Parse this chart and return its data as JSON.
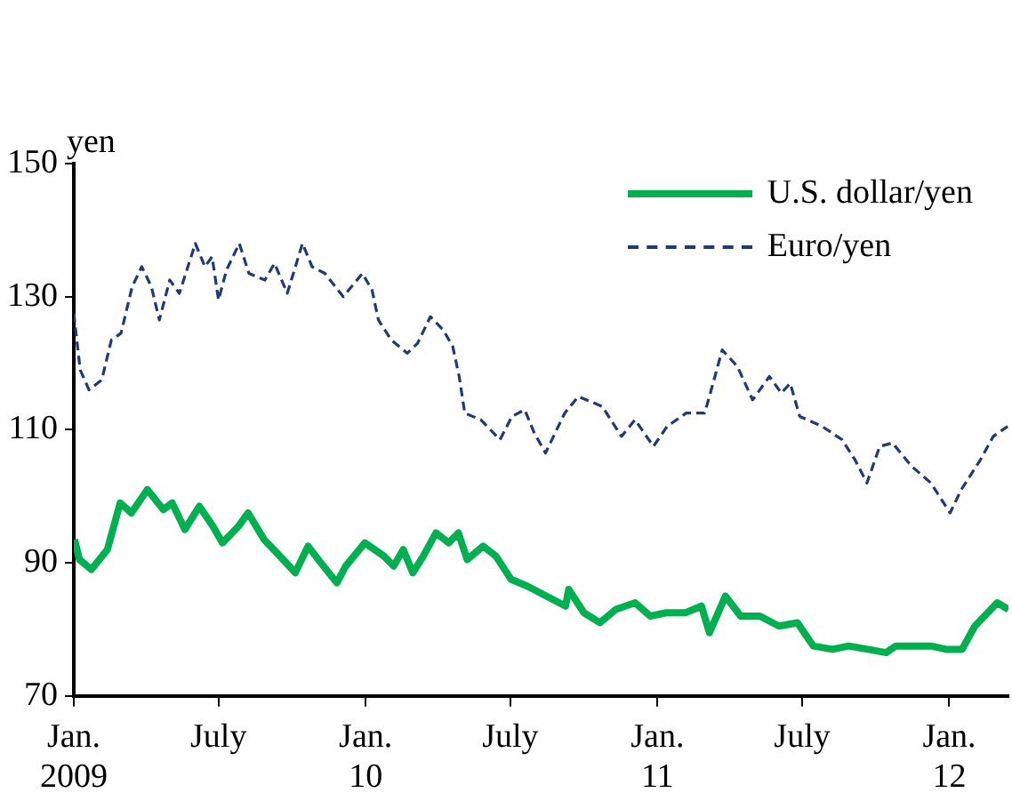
{
  "chart_data": {
    "type": "line",
    "ylabel": "yen",
    "ylim": [
      70,
      150
    ],
    "yticks": [
      70,
      90,
      110,
      130,
      150
    ],
    "xlim": [
      "2009-01-01",
      "2012-03-15"
    ],
    "xticks": [
      {
        "value": "2009-01-01",
        "label": "Jan.\n2009"
      },
      {
        "value": "2009-07-01",
        "label": "July"
      },
      {
        "value": "2010-01-01",
        "label": "Jan.\n10"
      },
      {
        "value": "2010-07-01",
        "label": "July"
      },
      {
        "value": "2011-01-01",
        "label": "Jan.\n11"
      },
      {
        "value": "2011-07-01",
        "label": "July"
      },
      {
        "value": "2012-01-01",
        "label": "Jan.\n12"
      }
    ],
    "grid": false,
    "legend": "top right",
    "marker": "none",
    "series": [
      {
        "name": "U.S. dollar/yen",
        "color": "#00b050",
        "line_style": "solid",
        "x": [
          "2009-01-02",
          "2009-01-08",
          "2009-01-23",
          "2009-02-12",
          "2009-02-28",
          "2009-03-14",
          "2009-04-03",
          "2009-04-23",
          "2009-05-04",
          "2009-05-20",
          "2009-06-07",
          "2009-06-24",
          "2009-07-06",
          "2009-07-26",
          "2009-08-07",
          "2009-08-27",
          "2009-09-12",
          "2009-10-05",
          "2009-10-21",
          "2009-11-06",
          "2009-11-26",
          "2009-12-07",
          "2009-12-31",
          "2010-01-24",
          "2010-02-05",
          "2010-02-17",
          "2010-03-01",
          "2010-03-14",
          "2010-03-30",
          "2010-04-15",
          "2010-04-27",
          "2010-05-08",
          "2010-05-28",
          "2010-06-13",
          "2010-07-02",
          "2010-07-22",
          "2010-08-15",
          "2010-09-08",
          "2010-09-12",
          "2010-10-01",
          "2010-10-21",
          "2010-11-10",
          "2010-12-04",
          "2010-12-23",
          "2011-01-12",
          "2011-02-05",
          "2011-02-25",
          "2011-03-07",
          "2011-03-27",
          "2011-04-15",
          "2011-05-09",
          "2011-06-02",
          "2011-06-25",
          "2011-07-15",
          "2011-08-08",
          "2011-08-28",
          "2011-09-21",
          "2011-10-14",
          "2011-10-26",
          "2011-11-15",
          "2011-12-09",
          "2011-12-28",
          "2012-01-17",
          "2012-02-02",
          "2012-02-18",
          "2012-03-01",
          "2012-03-15"
        ],
        "values": [
          93.5,
          90.5,
          89,
          92,
          99,
          97.5,
          101,
          98,
          99,
          95,
          98.5,
          95.5,
          93,
          95.5,
          97.5,
          93.5,
          91.5,
          88.5,
          92.5,
          90,
          87,
          89.5,
          93,
          91,
          89.5,
          92,
          88.5,
          91,
          94.5,
          93,
          94.5,
          90.5,
          92.5,
          91,
          87.5,
          86.5,
          85,
          83.5,
          86,
          82.5,
          81,
          83,
          84,
          82,
          82.5,
          82.5,
          83.5,
          79.5,
          85,
          82,
          82,
          80.5,
          81,
          77.5,
          77,
          77.5,
          77,
          76.5,
          77.5,
          77.5,
          77.5,
          77,
          77,
          80.5,
          82.5,
          84,
          83
        ]
      },
      {
        "name": "Euro/yen",
        "color": "#1f3a78",
        "line_style": "dashed",
        "x": [
          "2009-01-01",
          "2009-01-09",
          "2009-01-20",
          "2009-02-05",
          "2009-02-17",
          "2009-03-01",
          "2009-03-15",
          "2009-03-27",
          "2009-04-08",
          "2009-04-18",
          "2009-05-01",
          "2009-05-13",
          "2009-05-25",
          "2009-06-02",
          "2009-06-14",
          "2009-06-23",
          "2009-07-01",
          "2009-07-11",
          "2009-07-27",
          "2009-08-08",
          "2009-08-28",
          "2009-09-09",
          "2009-09-25",
          "2009-10-14",
          "2009-10-26",
          "2009-11-11",
          "2009-12-04",
          "2009-12-28",
          "2010-01-09",
          "2010-01-17",
          "2010-02-02",
          "2010-02-22",
          "2010-03-07",
          "2010-03-23",
          "2010-04-08",
          "2010-04-20",
          "2010-04-28",
          "2010-05-05",
          "2010-05-25",
          "2010-06-18",
          "2010-07-03",
          "2010-07-19",
          "2010-07-31",
          "2010-08-14",
          "2010-09-07",
          "2010-09-24",
          "2010-10-24",
          "2010-11-17",
          "2010-12-04",
          "2010-12-27",
          "2011-01-13",
          "2011-02-06",
          "2011-03-01",
          "2011-03-07",
          "2011-03-23",
          "2011-04-11",
          "2011-04-30",
          "2011-05-21",
          "2011-06-05",
          "2011-06-16",
          "2011-06-28",
          "2011-07-26",
          "2011-08-20",
          "2011-09-05",
          "2011-09-20",
          "2011-10-06",
          "2011-10-22",
          "2011-11-15",
          "2011-12-09",
          "2012-01-02",
          "2012-01-16",
          "2012-02-09",
          "2012-02-25",
          "2012-03-14"
        ],
        "values": [
          127.5,
          119,
          116,
          117.5,
          123.5,
          124.5,
          131.5,
          134.5,
          131.5,
          126.5,
          132.5,
          130.5,
          135,
          138,
          134.5,
          136,
          129.5,
          134,
          138,
          133.5,
          132.5,
          135,
          130.5,
          138,
          134.5,
          133.5,
          130,
          133.5,
          131,
          126.5,
          123.5,
          121.5,
          123,
          127,
          125,
          122.5,
          118,
          112.5,
          111.5,
          108.5,
          112,
          113,
          109.5,
          106.5,
          112.5,
          115,
          113.5,
          109,
          111.5,
          107.5,
          110.5,
          112.5,
          112.5,
          115,
          122,
          119.5,
          114.5,
          118,
          115.5,
          117,
          112,
          110.5,
          108.5,
          105.5,
          102,
          107.5,
          108,
          104.5,
          102,
          97.5,
          101,
          105.5,
          109,
          110.5
        ]
      }
    ]
  }
}
